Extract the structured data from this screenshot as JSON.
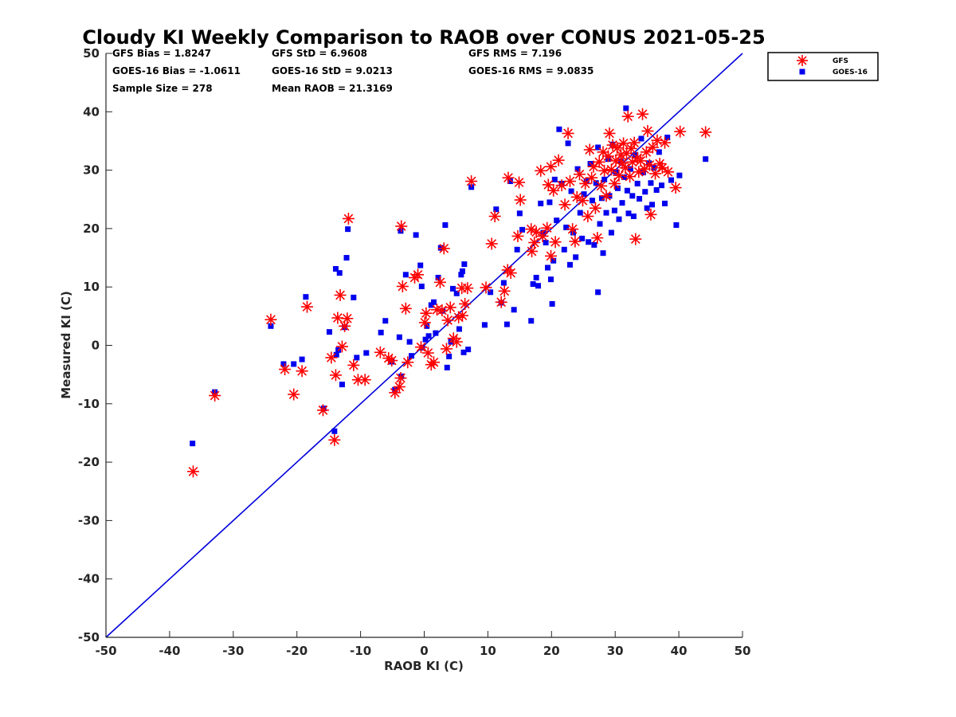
{
  "chart_data": {
    "type": "scatter",
    "title": "Cloudy KI Weekly Comparison to RAOB over CONUS 2021-05-25",
    "xlabel": "RAOB KI (C)",
    "ylabel": "Measured KI (C)",
    "xlim": [
      -50,
      50
    ],
    "ylim": [
      -50,
      50
    ],
    "xticks": [
      "-50",
      "-40",
      "-30",
      "-20",
      "-10",
      "0",
      "10",
      "20",
      "30",
      "40",
      "50"
    ],
    "yticks": [
      "50",
      "40",
      "30",
      "20",
      "10",
      "0",
      "-10",
      "-20",
      "-30",
      "-40",
      "-50"
    ],
    "grid": false,
    "legend_position": "outside-top-right",
    "reference_line": {
      "from": [
        -50,
        -50
      ],
      "to": [
        50,
        50
      ],
      "color": "#0000dd"
    },
    "stats": {
      "gfs_bias": "GFS Bias = 1.8247",
      "goes_bias": "GOES-16 Bias = -1.0611",
      "sample_size": "Sample Size = 278",
      "gfs_std": "GFS StD = 6.9608",
      "goes_std": "GOES-16 StD = 9.0213",
      "mean_raob": "Mean RAOB = 21.3169",
      "gfs_rms": "GFS RMS = 7.196",
      "goes_rms": "GOES-16 RMS = 9.0835"
    },
    "series": [
      {
        "name": "GFS",
        "marker": "asterisk",
        "color": "#ff0000",
        "points": [
          [
            -36.3,
            -21.6
          ],
          [
            -32.9,
            -8.6
          ],
          [
            -24.1,
            4.4
          ],
          [
            -21.9,
            -4.1
          ],
          [
            -20.5,
            -8.4
          ],
          [
            -19.2,
            -4.4
          ],
          [
            -18.4,
            6.6
          ],
          [
            -15.9,
            -11.1
          ],
          [
            -14.6,
            -2.1
          ],
          [
            -14.1,
            -16.2
          ],
          [
            -13.9,
            -5.1
          ],
          [
            -13.6,
            4.7
          ],
          [
            -13.2,
            8.6
          ],
          [
            -12.9,
            -0.2
          ],
          [
            -12.5,
            3.3
          ],
          [
            -12.1,
            4.6
          ],
          [
            -11.9,
            21.7
          ],
          [
            -11.1,
            -3.4
          ],
          [
            -10.4,
            -5.9
          ],
          [
            -9.3,
            -5.9
          ],
          [
            -6.9,
            -1.2
          ],
          [
            -5.6,
            -2.2
          ],
          [
            -5.1,
            -2.6
          ],
          [
            -4.6,
            -8.1
          ],
          [
            -3.9,
            -7.1
          ],
          [
            -3.7,
            -5.6
          ],
          [
            -3.6,
            20.4
          ],
          [
            -3.4,
            10.1
          ],
          [
            -2.9,
            6.3
          ],
          [
            -2.6,
            -2.9
          ],
          [
            -1.5,
            11.6
          ],
          [
            -1.0,
            12.1
          ],
          [
            -0.5,
            -0.3
          ],
          [
            0.1,
            3.9
          ],
          [
            0.3,
            5.5
          ],
          [
            0.6,
            -1.3
          ],
          [
            1.1,
            -3.3
          ],
          [
            1.5,
            -2.9
          ],
          [
            2.0,
            6.1
          ],
          [
            2.5,
            10.8
          ],
          [
            2.8,
            6.0
          ],
          [
            3.1,
            16.6
          ],
          [
            3.5,
            -0.6
          ],
          [
            3.7,
            4.3
          ],
          [
            4.1,
            6.5
          ],
          [
            4.6,
            1.2
          ],
          [
            5.1,
            0.6
          ],
          [
            5.4,
            4.8
          ],
          [
            5.9,
            9.8
          ],
          [
            6.0,
            5.1
          ],
          [
            6.4,
            7.1
          ],
          [
            6.8,
            9.8
          ],
          [
            7.4,
            28.1
          ],
          [
            9.7,
            9.9
          ],
          [
            10.6,
            17.4
          ],
          [
            11.1,
            22.1
          ],
          [
            12.1,
            7.4
          ],
          [
            12.6,
            9.3
          ],
          [
            13.1,
            12.9
          ],
          [
            13.2,
            28.7
          ],
          [
            13.6,
            12.4
          ],
          [
            14.7,
            18.7
          ],
          [
            14.9,
            27.9
          ],
          [
            15.1,
            24.9
          ],
          [
            16.8,
            19.9
          ],
          [
            16.9,
            16.1
          ],
          [
            17.3,
            17.6
          ],
          [
            17.6,
            19.4
          ],
          [
            18.3,
            29.9
          ],
          [
            18.6,
            18.7
          ],
          [
            19.3,
            20.1
          ],
          [
            19.5,
            27.5
          ],
          [
            19.9,
            30.6
          ],
          [
            19.9,
            15.3
          ],
          [
            20.3,
            26.5
          ],
          [
            20.6,
            17.7
          ],
          [
            21.1,
            31.7
          ],
          [
            21.6,
            27.4
          ],
          [
            22.1,
            24.1
          ],
          [
            22.6,
            36.3
          ],
          [
            22.9,
            28.1
          ],
          [
            23.3,
            19.9
          ],
          [
            23.7,
            17.8
          ],
          [
            24.0,
            25.4
          ],
          [
            24.4,
            29.3
          ],
          [
            24.9,
            24.8
          ],
          [
            25.3,
            27.7
          ],
          [
            25.7,
            22.1
          ],
          [
            26.0,
            33.5
          ],
          [
            26.3,
            28.7
          ],
          [
            26.6,
            30.6
          ],
          [
            26.9,
            23.5
          ],
          [
            27.2,
            18.4
          ],
          [
            27.5,
            31.4
          ],
          [
            27.8,
            27.3
          ],
          [
            28.1,
            33.1
          ],
          [
            28.3,
            29.9
          ],
          [
            28.6,
            25.6
          ],
          [
            28.9,
            32.4
          ],
          [
            29.1,
            36.3
          ],
          [
            29.4,
            30.1
          ],
          [
            29.6,
            34.3
          ],
          [
            29.9,
            27.7
          ],
          [
            30.1,
            31.6
          ],
          [
            30.3,
            33.8
          ],
          [
            30.6,
            29.1
          ],
          [
            30.9,
            32.6
          ],
          [
            31.1,
            31.2
          ],
          [
            31.3,
            34.6
          ],
          [
            31.6,
            30.4
          ],
          [
            31.8,
            32.9
          ],
          [
            32.0,
            39.2
          ],
          [
            32.3,
            28.9
          ],
          [
            32.5,
            33.7
          ],
          [
            32.7,
            31.4
          ],
          [
            33.0,
            34.7
          ],
          [
            33.2,
            18.2
          ],
          [
            33.5,
            32.1
          ],
          [
            33.7,
            29.7
          ],
          [
            34.0,
            31.6
          ],
          [
            34.3,
            39.6
          ],
          [
            34.6,
            30.2
          ],
          [
            34.9,
            33.1
          ],
          [
            35.1,
            36.7
          ],
          [
            35.4,
            30.9
          ],
          [
            35.6,
            22.4
          ],
          [
            35.9,
            33.9
          ],
          [
            36.3,
            29.4
          ],
          [
            36.6,
            35.1
          ],
          [
            37.0,
            31.1
          ],
          [
            37.4,
            30.4
          ],
          [
            37.8,
            34.7
          ],
          [
            38.3,
            29.7
          ],
          [
            39.5,
            27.0
          ],
          [
            40.2,
            36.6
          ],
          [
            44.2,
            36.5
          ]
        ]
      },
      {
        "name": "GOES-16",
        "marker": "square",
        "color": "#0000ee",
        "points": [
          [
            -36.4,
            -16.8
          ],
          [
            -32.9,
            -8.0
          ],
          [
            -24.1,
            3.3
          ],
          [
            -22.1,
            -3.2
          ],
          [
            -20.5,
            -3.2
          ],
          [
            -19.2,
            -2.4
          ],
          [
            -18.6,
            8.3
          ],
          [
            -15.8,
            -10.8
          ],
          [
            -14.9,
            2.3
          ],
          [
            -14.1,
            -14.7
          ],
          [
            -13.9,
            13.1
          ],
          [
            -13.8,
            -1.6
          ],
          [
            -13.5,
            -0.8
          ],
          [
            -13.3,
            12.4
          ],
          [
            -12.9,
            -6.7
          ],
          [
            -12.5,
            3.1
          ],
          [
            -12.2,
            15.0
          ],
          [
            -12.0,
            19.9
          ],
          [
            -11.1,
            8.2
          ],
          [
            -10.6,
            -2.1
          ],
          [
            -9.1,
            -1.3
          ],
          [
            -6.8,
            2.2
          ],
          [
            -6.1,
            4.2
          ],
          [
            -5.1,
            -2.8
          ],
          [
            -4.6,
            -7.6
          ],
          [
            -3.9,
            1.4
          ],
          [
            -3.7,
            19.6
          ],
          [
            -3.6,
            -5.3
          ],
          [
            -2.9,
            12.1
          ],
          [
            -2.3,
            0.6
          ],
          [
            -2.0,
            -1.8
          ],
          [
            -1.3,
            18.9
          ],
          [
            -0.6,
            13.7
          ],
          [
            -0.4,
            10.1
          ],
          [
            -0.3,
            -0.4
          ],
          [
            0.2,
            1.0
          ],
          [
            0.4,
            3.3
          ],
          [
            0.7,
            1.6
          ],
          [
            1.1,
            6.9
          ],
          [
            1.5,
            7.4
          ],
          [
            1.8,
            2.1
          ],
          [
            2.2,
            11.6
          ],
          [
            2.6,
            16.7
          ],
          [
            2.9,
            5.9
          ],
          [
            3.3,
            20.6
          ],
          [
            3.6,
            -3.8
          ],
          [
            3.9,
            -1.9
          ],
          [
            4.2,
            0.6
          ],
          [
            4.5,
            9.7
          ],
          [
            5.1,
            8.9
          ],
          [
            5.5,
            2.8
          ],
          [
            5.8,
            12.1
          ],
          [
            6.0,
            12.7
          ],
          [
            6.2,
            -1.2
          ],
          [
            6.3,
            13.9
          ],
          [
            6.9,
            -0.7
          ],
          [
            7.4,
            27.1
          ],
          [
            9.5,
            3.5
          ],
          [
            10.4,
            9.1
          ],
          [
            11.3,
            23.3
          ],
          [
            12.1,
            7.3
          ],
          [
            12.5,
            10.7
          ],
          [
            13.0,
            3.6
          ],
          [
            13.5,
            28.1
          ],
          [
            14.1,
            6.1
          ],
          [
            14.6,
            16.4
          ],
          [
            15.0,
            22.6
          ],
          [
            15.4,
            19.8
          ],
          [
            16.8,
            4.2
          ],
          [
            17.1,
            10.5
          ],
          [
            17.6,
            11.6
          ],
          [
            17.9,
            10.2
          ],
          [
            18.3,
            24.3
          ],
          [
            18.7,
            19.3
          ],
          [
            19.1,
            17.6
          ],
          [
            19.4,
            13.3
          ],
          [
            19.7,
            24.5
          ],
          [
            19.9,
            11.3
          ],
          [
            20.1,
            7.1
          ],
          [
            20.3,
            14.5
          ],
          [
            20.5,
            28.4
          ],
          [
            20.8,
            21.4
          ],
          [
            21.2,
            37.0
          ],
          [
            21.6,
            27.7
          ],
          [
            22.0,
            16.4
          ],
          [
            22.3,
            20.2
          ],
          [
            22.6,
            34.6
          ],
          [
            22.9,
            13.8
          ],
          [
            23.1,
            26.4
          ],
          [
            23.4,
            19.3
          ],
          [
            23.8,
            15.1
          ],
          [
            24.1,
            30.2
          ],
          [
            24.5,
            22.7
          ],
          [
            24.8,
            18.3
          ],
          [
            25.1,
            25.9
          ],
          [
            25.5,
            28.1
          ],
          [
            25.8,
            17.7
          ],
          [
            26.1,
            31.1
          ],
          [
            26.4,
            24.8
          ],
          [
            26.7,
            17.2
          ],
          [
            27.0,
            27.8
          ],
          [
            27.3,
            9.1
          ],
          [
            27.3,
            33.9
          ],
          [
            27.6,
            20.8
          ],
          [
            27.9,
            25.2
          ],
          [
            28.1,
            15.8
          ],
          [
            28.3,
            28.4
          ],
          [
            28.6,
            22.7
          ],
          [
            28.9,
            31.9
          ],
          [
            29.1,
            25.6
          ],
          [
            29.4,
            19.3
          ],
          [
            29.6,
            34.4
          ],
          [
            29.9,
            23.1
          ],
          [
            30.1,
            29.7
          ],
          [
            30.4,
            26.9
          ],
          [
            30.6,
            21.6
          ],
          [
            30.9,
            31.5
          ],
          [
            31.1,
            24.4
          ],
          [
            31.4,
            28.8
          ],
          [
            31.7,
            40.6
          ],
          [
            31.9,
            26.5
          ],
          [
            32.1,
            22.6
          ],
          [
            32.4,
            30.2
          ],
          [
            32.7,
            25.6
          ],
          [
            32.9,
            22.1
          ],
          [
            33.2,
            32.6
          ],
          [
            33.5,
            27.7
          ],
          [
            33.8,
            25.1
          ],
          [
            34.1,
            35.4
          ],
          [
            34.4,
            29.6
          ],
          [
            34.7,
            26.3
          ],
          [
            35.0,
            23.5
          ],
          [
            35.3,
            31.2
          ],
          [
            35.6,
            27.8
          ],
          [
            35.8,
            24.1
          ],
          [
            36.1,
            30.4
          ],
          [
            36.5,
            26.6
          ],
          [
            36.9,
            33.1
          ],
          [
            37.3,
            27.4
          ],
          [
            37.8,
            24.3
          ],
          [
            38.2,
            35.6
          ],
          [
            38.8,
            28.3
          ],
          [
            39.6,
            20.6
          ],
          [
            40.1,
            29.1
          ],
          [
            44.2,
            31.9
          ]
        ]
      }
    ]
  }
}
